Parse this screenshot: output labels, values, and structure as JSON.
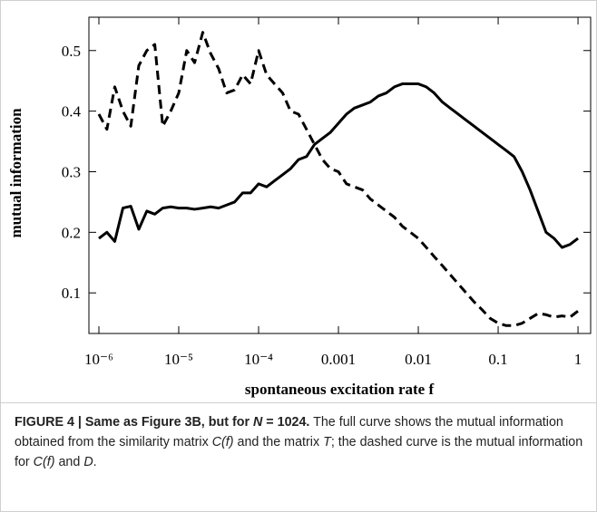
{
  "chart_data": {
    "type": "line",
    "xscale": "log",
    "xlabel": "spontaneous excitation rate f",
    "ylabel": "mutual information",
    "x": [
      1e-06,
      1.26e-06,
      1.58e-06,
      2e-06,
      2.51e-06,
      3.16e-06,
      3.98e-06,
      5.01e-06,
      6.31e-06,
      7.94e-06,
      1e-05,
      1.26e-05,
      1.58e-05,
      2e-05,
      2.51e-05,
      3.16e-05,
      3.98e-05,
      5.01e-05,
      6.31e-05,
      7.94e-05,
      0.0001,
      0.000126,
      0.000158,
      0.0002,
      0.000251,
      0.000316,
      0.000398,
      0.000501,
      0.000631,
      0.000794,
      0.001,
      0.00126,
      0.00158,
      0.002,
      0.00251,
      0.00316,
      0.00398,
      0.00501,
      0.00631,
      0.00794,
      0.01,
      0.0126,
      0.0158,
      0.02,
      0.0251,
      0.0316,
      0.0398,
      0.0501,
      0.0631,
      0.0794,
      0.1,
      0.126,
      0.158,
      0.2,
      0.251,
      0.316,
      0.398,
      0.501,
      0.631,
      0.794,
      1
    ],
    "series": [
      {
        "style": "solid",
        "color": "#000000",
        "values": [
          0.19,
          0.2,
          0.185,
          0.24,
          0.243,
          0.205,
          0.235,
          0.23,
          0.24,
          0.242,
          0.24,
          0.24,
          0.238,
          0.24,
          0.242,
          0.24,
          0.245,
          0.25,
          0.265,
          0.265,
          0.28,
          0.275,
          0.285,
          0.295,
          0.305,
          0.32,
          0.325,
          0.345,
          0.355,
          0.365,
          0.38,
          0.395,
          0.405,
          0.41,
          0.415,
          0.425,
          0.43,
          0.44,
          0.445,
          0.445,
          0.445,
          0.44,
          0.43,
          0.415,
          0.405,
          0.395,
          0.385,
          0.375,
          0.365,
          0.355,
          0.345,
          0.335,
          0.325,
          0.3,
          0.27,
          0.235,
          0.2,
          0.19,
          0.175,
          0.18,
          0.19
        ]
      },
      {
        "style": "dashed",
        "color": "#000000",
        "values": [
          0.395,
          0.37,
          0.44,
          0.4,
          0.375,
          0.475,
          0.5,
          0.51,
          0.375,
          0.4,
          0.43,
          0.5,
          0.48,
          0.53,
          0.495,
          0.47,
          0.43,
          0.435,
          0.46,
          0.445,
          0.5,
          0.46,
          0.445,
          0.43,
          0.4,
          0.395,
          0.37,
          0.345,
          0.32,
          0.305,
          0.3,
          0.28,
          0.275,
          0.27,
          0.255,
          0.245,
          0.235,
          0.225,
          0.21,
          0.2,
          0.19,
          0.175,
          0.16,
          0.145,
          0.13,
          0.115,
          0.1,
          0.085,
          0.072,
          0.058,
          0.05,
          0.046,
          0.046,
          0.05,
          0.058,
          0.066,
          0.064,
          0.06,
          0.062,
          0.06,
          0.07
        ]
      }
    ],
    "xlim": [
      7.5e-07,
      1.44
    ],
    "xticks": [
      {
        "value": 1e-06,
        "label": "10⁻⁶"
      },
      {
        "value": 1e-05,
        "label": "10⁻⁵"
      },
      {
        "value": 0.0001,
        "label": "10⁻⁴"
      },
      0.001,
      0.01,
      0.1,
      1
    ],
    "ylim": [
      0.033,
      0.555
    ],
    "yticks": [
      0.1,
      0.2,
      0.3,
      0.4,
      0.5
    ]
  },
  "caption": [
    {
      "text": "FIGURE 4 | Same as Figure 3B, but for ",
      "style": "b"
    },
    {
      "text": "N",
      "style": "bi"
    },
    {
      "text": " = 1024.",
      "style": "b"
    },
    {
      "text": " The full curve shows the mutual information obtained from the similarity matrix ",
      "style": "n"
    },
    {
      "text": "C(f)",
      "style": "i"
    },
    {
      "text": " and the matrix ",
      "style": "n"
    },
    {
      "text": "T",
      "style": "i"
    },
    {
      "text": "; the dashed curve is the mutual information for ",
      "style": "n"
    },
    {
      "text": "C(f)",
      "style": "i"
    },
    {
      "text": " and ",
      "style": "n"
    },
    {
      "text": "D",
      "style": "i"
    },
    {
      "text": ".",
      "style": "n"
    }
  ]
}
